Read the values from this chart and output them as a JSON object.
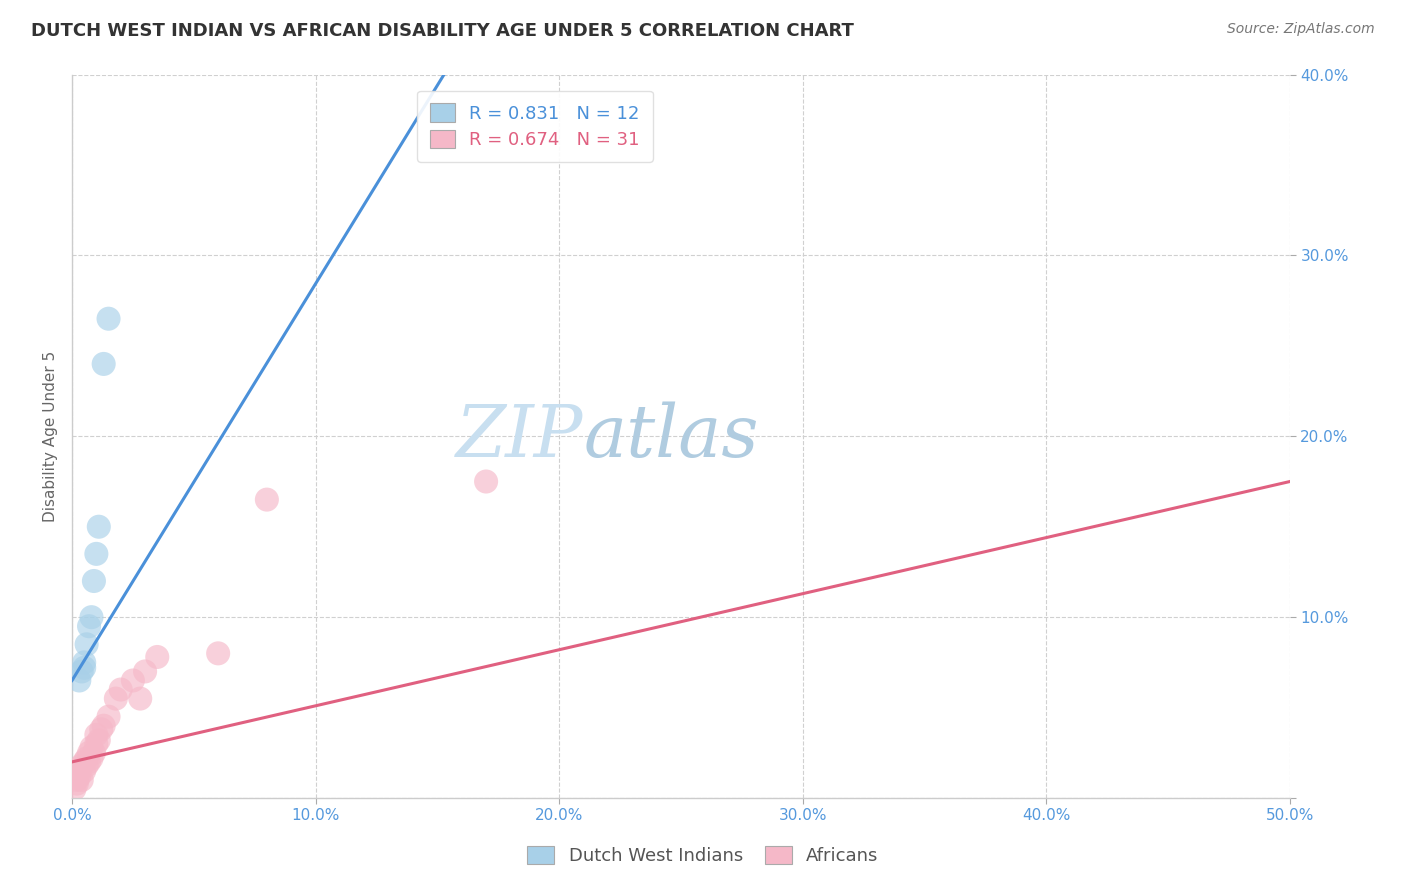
{
  "title": "DUTCH WEST INDIAN VS AFRICAN DISABILITY AGE UNDER 5 CORRELATION CHART",
  "source": "Source: ZipAtlas.com",
  "ylabel": "Disability Age Under 5",
  "xlim": [
    0.0,
    0.5
  ],
  "ylim": [
    0.0,
    0.4
  ],
  "xtick_values": [
    0.0,
    0.1,
    0.2,
    0.3,
    0.4,
    0.5
  ],
  "ytick_values": [
    0.0,
    0.1,
    0.2,
    0.3,
    0.4
  ],
  "blue_R": 0.831,
  "blue_N": 12,
  "pink_R": 0.674,
  "pink_N": 31,
  "blue_color": "#a8d0e8",
  "blue_line_color": "#4a90d9",
  "pink_color": "#f5b8c8",
  "pink_line_color": "#e06080",
  "background_color": "#ffffff",
  "grid_color": "#d0d0d0",
  "title_fontsize": 13,
  "label_fontsize": 11,
  "tick_fontsize": 11,
  "legend_fontsize": 13,
  "source_fontsize": 10,
  "watermark_ZIP_color": "#c8dff0",
  "watermark_atlas_color": "#b0cce0",
  "right_tick_color": "#5599dd",
  "blue_scatter_x": [
    0.003,
    0.004,
    0.005,
    0.005,
    0.006,
    0.007,
    0.008,
    0.009,
    0.01,
    0.011,
    0.013,
    0.015
  ],
  "blue_scatter_y": [
    0.065,
    0.07,
    0.072,
    0.075,
    0.085,
    0.095,
    0.1,
    0.12,
    0.135,
    0.15,
    0.24,
    0.265
  ],
  "pink_scatter_x": [
    0.001,
    0.002,
    0.002,
    0.003,
    0.003,
    0.004,
    0.004,
    0.005,
    0.005,
    0.006,
    0.006,
    0.007,
    0.007,
    0.008,
    0.008,
    0.009,
    0.01,
    0.01,
    0.011,
    0.012,
    0.013,
    0.015,
    0.018,
    0.02,
    0.025,
    0.028,
    0.03,
    0.035,
    0.06,
    0.08,
    0.17
  ],
  "pink_scatter_y": [
    0.005,
    0.008,
    0.01,
    0.012,
    0.015,
    0.01,
    0.018,
    0.015,
    0.02,
    0.018,
    0.022,
    0.02,
    0.025,
    0.022,
    0.028,
    0.025,
    0.03,
    0.035,
    0.032,
    0.038,
    0.04,
    0.045,
    0.055,
    0.06,
    0.065,
    0.055,
    0.07,
    0.078,
    0.08,
    0.165,
    0.175
  ],
  "blue_line_x": [
    0.0,
    0.155
  ],
  "blue_line_y": [
    0.065,
    0.405
  ],
  "pink_line_x": [
    0.0,
    0.5
  ],
  "pink_line_y": [
    0.02,
    0.175
  ]
}
